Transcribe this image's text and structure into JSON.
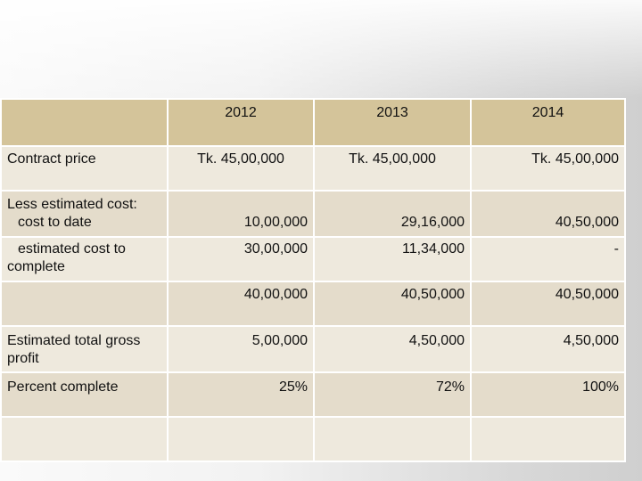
{
  "table": {
    "headers": [
      "",
      "2012",
      "2013",
      "2014"
    ],
    "rows": [
      {
        "label": "Contract price",
        "values": [
          "Tk. 45,00,000",
          "Tk. 45,00,000",
          "Tk. 45,00,000"
        ]
      },
      {
        "label_line1": "Less estimated cost:",
        "label_line2": "cost to date",
        "values": [
          "10,00,000",
          "29,16,000",
          "40,50,000"
        ]
      },
      {
        "label_line1": "estimated cost to",
        "label_line2": "complete",
        "values": [
          "30,00,000",
          "11,34,000",
          "-"
        ]
      },
      {
        "label": "",
        "values": [
          "40,00,000",
          "40,50,000",
          "40,50,000"
        ]
      },
      {
        "label_line1": "Estimated total gross",
        "label_line2": "profit",
        "values": [
          "5,00,000",
          "4,50,000",
          "4,50,000"
        ]
      },
      {
        "label": "Percent complete",
        "values": [
          "25%",
          "72%",
          "100%"
        ]
      },
      {
        "label": "",
        "values": [
          "",
          "",
          ""
        ]
      }
    ]
  }
}
